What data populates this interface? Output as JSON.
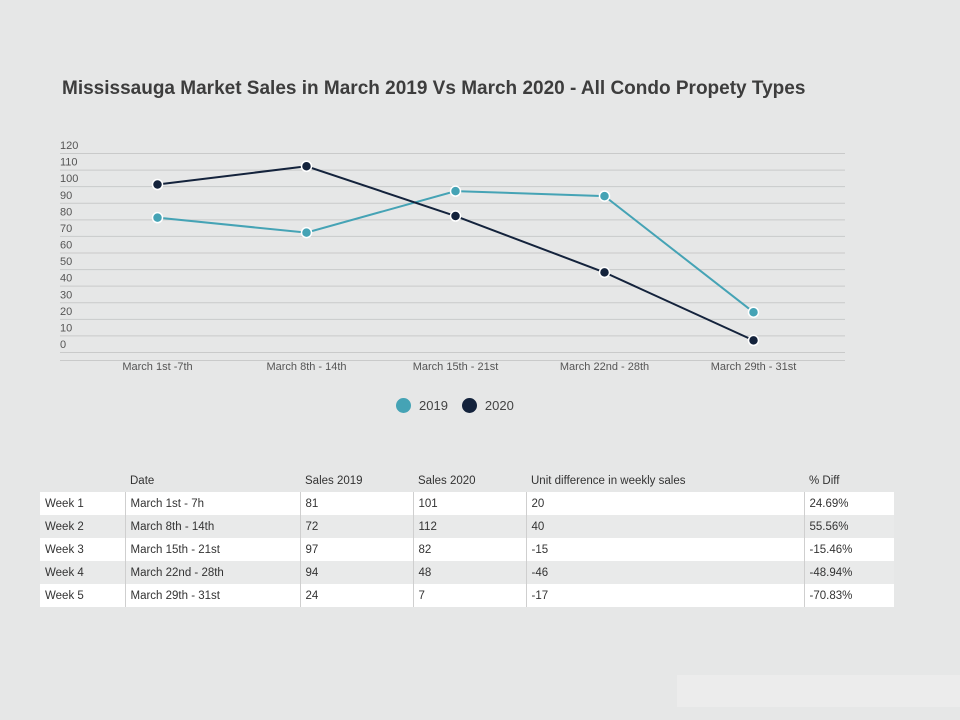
{
  "title": "Mississauga Market Sales in March 2019 Vs March 2020 - All Condo Propety Types",
  "chart_data": {
    "type": "line",
    "categories": [
      "March 1st -7th",
      "March 8th - 14th",
      "March 15th - 21st",
      "March 22nd - 28th",
      "March 29th - 31st"
    ],
    "series": [
      {
        "name": "2019",
        "values": [
          81,
          72,
          97,
          94,
          24
        ],
        "color": "#45a3b5"
      },
      {
        "name": "2020",
        "values": [
          101,
          112,
          82,
          48,
          7
        ],
        "color": "#14233c"
      }
    ],
    "ylim": [
      0,
      120
    ],
    "yticks": [
      0,
      10,
      20,
      30,
      40,
      50,
      60,
      70,
      80,
      90,
      100,
      110,
      120
    ],
    "grid": true,
    "legend": "bottom-center"
  },
  "legend": [
    {
      "label": "2019",
      "color": "#45a3b5"
    },
    {
      "label": "2020",
      "color": "#14233c"
    }
  ],
  "table": {
    "headers": [
      "",
      "Date",
      "Sales 2019",
      "Sales 2020",
      "Unit difference in weekly sales",
      "% Diff"
    ],
    "rows": [
      [
        "Week 1",
        "March 1st - 7h",
        "81",
        "101",
        "20",
        "24.69%"
      ],
      [
        "Week 2",
        "March 8th - 14th",
        "72",
        "112",
        "40",
        "55.56%"
      ],
      [
        "Week 3",
        "March 15th - 21st",
        "97",
        "82",
        "-15",
        "-15.46%"
      ],
      [
        "Week 4",
        "March 22nd - 28th",
        "94",
        "48",
        "-46",
        "-48.94%"
      ],
      [
        "Week 5",
        "March 29th - 31st",
        "24",
        "7",
        "-17",
        "-70.83%"
      ]
    ]
  }
}
